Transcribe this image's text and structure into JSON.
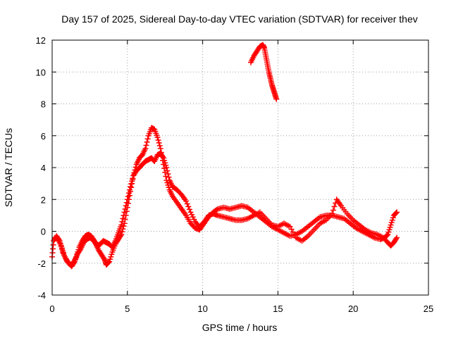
{
  "chart_data": {
    "type": "scatter",
    "title": "Day 157 of 2025, Sidereal Day-to-day VTEC variation (SDTVAR) for receiver thev",
    "xlabel": "GPS time / hours",
    "ylabel": "SDTVAR / TECUs",
    "xlim": [
      0,
      25
    ],
    "ylim": [
      -4,
      12
    ],
    "xticks": [
      0,
      5,
      10,
      15,
      20,
      25
    ],
    "yticks": [
      -4,
      -2,
      0,
      2,
      4,
      6,
      8,
      10,
      12
    ],
    "grid": true,
    "legend": "none",
    "marker": "plus",
    "color": "#ff0000",
    "series": [
      {
        "name": "SDTVAR",
        "segments": [
          [
            [
              0.0,
              -1.6
            ],
            [
              0.1,
              -0.6
            ],
            [
              0.3,
              -0.3
            ],
            [
              0.5,
              -0.6
            ],
            [
              0.7,
              -1.3
            ],
            [
              0.9,
              -1.7
            ],
            [
              1.1,
              -2.0
            ],
            [
              1.3,
              -2.2
            ],
            [
              1.5,
              -1.9
            ],
            [
              1.7,
              -1.4
            ],
            [
              1.9,
              -1.1
            ],
            [
              2.1,
              -0.7
            ],
            [
              2.3,
              -0.5
            ],
            [
              2.5,
              -0.4
            ],
            [
              2.7,
              -0.5
            ],
            [
              2.9,
              -0.8
            ],
            [
              3.1,
              -1.2
            ],
            [
              3.3,
              -1.5
            ],
            [
              3.5,
              -1.8
            ],
            [
              3.6,
              -2.1
            ],
            [
              3.8,
              -1.9
            ],
            [
              4.0,
              -1.3
            ],
            [
              4.2,
              -0.8
            ],
            [
              4.4,
              -0.5
            ],
            [
              4.6,
              -0.2
            ],
            [
              4.8,
              0.5
            ],
            [
              5.0,
              1.5
            ],
            [
              5.2,
              2.5
            ],
            [
              5.4,
              3.5
            ],
            [
              5.6,
              4.2
            ],
            [
              5.8,
              4.6
            ],
            [
              6.0,
              4.8
            ],
            [
              6.2,
              5.2
            ],
            [
              6.4,
              6.0
            ],
            [
              6.6,
              6.5
            ],
            [
              6.8,
              6.4
            ],
            [
              7.0,
              5.9
            ],
            [
              7.2,
              5.2
            ],
            [
              7.4,
              4.2
            ],
            [
              7.6,
              3.2
            ],
            [
              7.8,
              2.6
            ],
            [
              8.0,
              2.2
            ],
            [
              8.3,
              1.8
            ],
            [
              8.6,
              1.4
            ],
            [
              8.9,
              1.0
            ],
            [
              9.2,
              0.5
            ],
            [
              9.5,
              0.2
            ],
            [
              9.8,
              0.1
            ],
            [
              10.1,
              0.5
            ],
            [
              10.4,
              0.9
            ],
            [
              10.7,
              1.2
            ],
            [
              11.0,
              1.4
            ],
            [
              11.4,
              1.5
            ],
            [
              11.8,
              1.4
            ],
            [
              12.2,
              1.5
            ],
            [
              12.6,
              1.6
            ],
            [
              13.0,
              1.5
            ],
            [
              13.4,
              1.2
            ],
            [
              13.8,
              0.9
            ],
            [
              14.2,
              0.6
            ],
            [
              14.6,
              0.3
            ],
            [
              15.0,
              0.1
            ],
            [
              15.4,
              -0.1
            ],
            [
              15.8,
              -0.3
            ],
            [
              16.2,
              -0.2
            ],
            [
              16.6,
              0.0
            ],
            [
              17.0,
              0.3
            ],
            [
              17.4,
              0.6
            ],
            [
              17.8,
              0.9
            ],
            [
              18.2,
              1.0
            ],
            [
              18.6,
              1.0
            ],
            [
              19.0,
              0.9
            ],
            [
              19.4,
              0.8
            ],
            [
              19.8,
              0.5
            ],
            [
              20.2,
              0.2
            ],
            [
              20.6,
              0.0
            ],
            [
              21.0,
              -0.2
            ],
            [
              21.4,
              -0.4
            ],
            [
              21.8,
              -0.5
            ],
            [
              22.1,
              -0.4
            ],
            [
              22.3,
              -0.2
            ],
            [
              22.5,
              0.4
            ],
            [
              22.7,
              1.0
            ],
            [
              22.9,
              1.2
            ]
          ],
          [
            [
              0.2,
              -0.4
            ],
            [
              0.4,
              -0.5
            ],
            [
              0.6,
              -0.9
            ],
            [
              0.8,
              -1.5
            ],
            [
              1.0,
              -1.9
            ],
            [
              1.2,
              -2.1
            ],
            [
              1.4,
              -2.0
            ],
            [
              1.6,
              -1.6
            ],
            [
              1.8,
              -1.0
            ],
            [
              2.0,
              -0.6
            ],
            [
              2.2,
              -0.3
            ],
            [
              2.4,
              -0.2
            ],
            [
              2.6,
              -0.3
            ],
            [
              2.8,
              -0.6
            ],
            [
              3.0,
              -0.9
            ],
            [
              3.2,
              -0.8
            ],
            [
              3.4,
              -0.6
            ],
            [
              3.6,
              -0.7
            ],
            [
              3.8,
              -0.8
            ],
            [
              4.0,
              -1.0
            ],
            [
              4.2,
              -0.6
            ],
            [
              4.4,
              -0.1
            ],
            [
              4.6,
              0.4
            ],
            [
              4.8,
              1.2
            ],
            [
              5.0,
              2.0
            ],
            [
              5.2,
              2.8
            ],
            [
              5.4,
              3.5
            ],
            [
              5.6,
              3.8
            ],
            [
              5.8,
              4.0
            ],
            [
              6.0,
              4.2
            ],
            [
              6.2,
              4.4
            ],
            [
              6.4,
              4.5
            ],
            [
              6.6,
              4.6
            ],
            [
              6.8,
              4.4
            ],
            [
              7.0,
              4.8
            ],
            [
              7.2,
              4.9
            ],
            [
              7.4,
              4.6
            ],
            [
              7.6,
              4.0
            ],
            [
              7.8,
              3.2
            ],
            [
              8.0,
              2.8
            ],
            [
              8.3,
              2.6
            ],
            [
              8.6,
              2.3
            ],
            [
              8.9,
              1.9
            ],
            [
              9.2,
              1.2
            ],
            [
              9.5,
              0.6
            ],
            [
              9.8,
              0.3
            ],
            [
              10.1,
              0.6
            ],
            [
              10.4,
              1.0
            ],
            [
              10.7,
              1.1
            ],
            [
              11.0,
              1.0
            ],
            [
              11.4,
              0.9
            ],
            [
              11.8,
              0.8
            ],
            [
              12.2,
              0.7
            ],
            [
              12.6,
              0.7
            ],
            [
              13.0,
              0.8
            ],
            [
              13.4,
              1.0
            ],
            [
              13.8,
              1.2
            ],
            [
              14.2,
              0.8
            ],
            [
              14.6,
              0.4
            ],
            [
              15.0,
              0.3
            ],
            [
              15.4,
              0.5
            ],
            [
              15.8,
              0.3
            ],
            [
              16.2,
              -0.4
            ],
            [
              16.6,
              -0.6
            ],
            [
              17.0,
              -0.3
            ],
            [
              17.4,
              0.1
            ],
            [
              17.8,
              0.5
            ],
            [
              18.2,
              0.7
            ],
            [
              18.6,
              1.1
            ],
            [
              18.9,
              2.0
            ],
            [
              19.2,
              1.6
            ],
            [
              19.6,
              1.1
            ],
            [
              20.0,
              0.7
            ],
            [
              20.4,
              0.4
            ],
            [
              20.8,
              0.1
            ],
            [
              21.2,
              -0.1
            ],
            [
              21.6,
              -0.2
            ],
            [
              22.0,
              -0.4
            ],
            [
              22.3,
              -0.7
            ],
            [
              22.5,
              -0.9
            ],
            [
              22.7,
              -0.7
            ],
            [
              22.9,
              -0.4
            ]
          ],
          [
            [
              13.2,
              10.6
            ],
            [
              13.4,
              11.0
            ],
            [
              13.6,
              11.3
            ],
            [
              13.8,
              11.6
            ],
            [
              14.0,
              11.7
            ],
            [
              14.1,
              11.5
            ],
            [
              14.2,
              11.0
            ],
            [
              14.3,
              10.5
            ],
            [
              14.4,
              10.0
            ],
            [
              14.5,
              9.6
            ],
            [
              14.6,
              9.2
            ],
            [
              14.7,
              8.9
            ],
            [
              14.8,
              8.6
            ],
            [
              14.9,
              8.3
            ]
          ]
        ]
      }
    ]
  }
}
